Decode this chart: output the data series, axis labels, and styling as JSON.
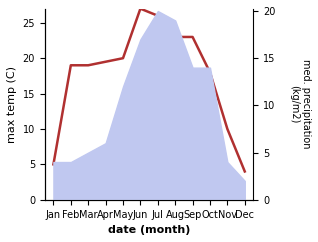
{
  "months": [
    "Jan",
    "Feb",
    "Mar",
    "Apr",
    "May",
    "Jun",
    "Jul",
    "Aug",
    "Sep",
    "Oct",
    "Nov",
    "Dec"
  ],
  "month_indices": [
    1,
    2,
    3,
    4,
    5,
    6,
    7,
    8,
    9,
    10,
    11,
    12
  ],
  "temperature": [
    5,
    19,
    19,
    19.5,
    20,
    27,
    26,
    23,
    23,
    18,
    10,
    4
  ],
  "precipitation": [
    4,
    4,
    5,
    6,
    12,
    17,
    20,
    19,
    14,
    14,
    4,
    2
  ],
  "temp_color": "#b03030",
  "precip_fill_color": "#c0c8f0",
  "temp_ylim": [
    0,
    27
  ],
  "precip_ylim": [
    0,
    20.25
  ],
  "temp_yticks": [
    0,
    5,
    10,
    15,
    20,
    25
  ],
  "precip_yticks": [
    0,
    5,
    10,
    15,
    20
  ],
  "xlabel": "date (month)",
  "ylabel_left": "max temp (C)",
  "ylabel_right": "med. precipitation\n(kg/m2)",
  "bg_color": "#ffffff",
  "line_width": 1.8,
  "figsize": [
    3.18,
    2.42
  ],
  "dpi": 100
}
